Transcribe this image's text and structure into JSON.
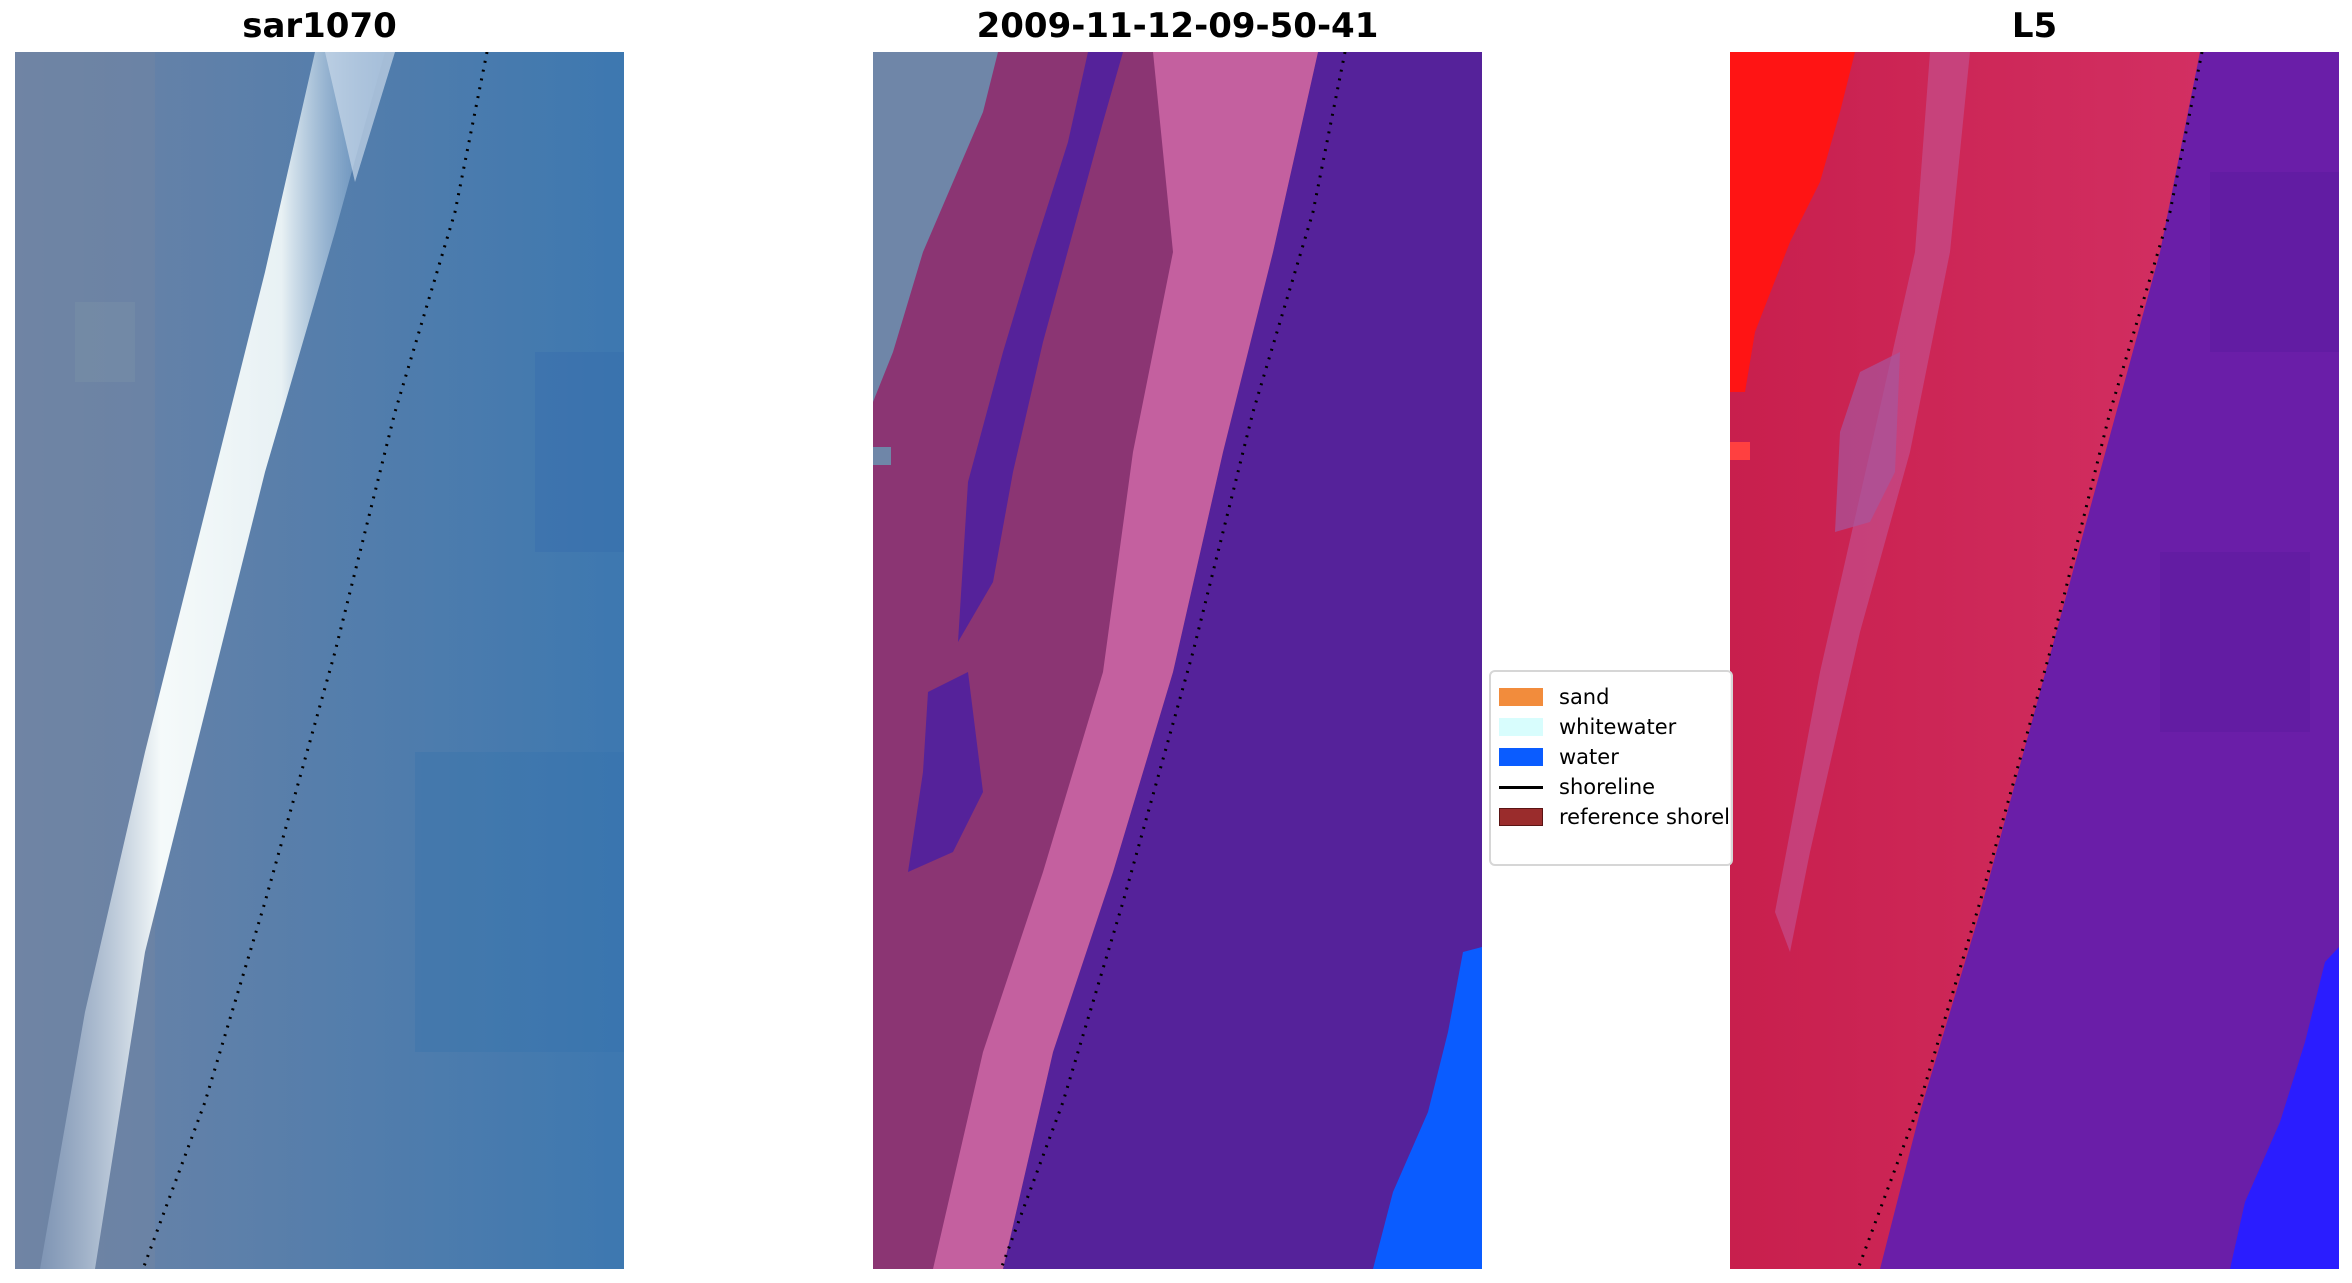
{
  "panels": [
    {
      "title": "sar1070",
      "kind": "rgb"
    },
    {
      "title": "2009-11-12-09-50-41",
      "kind": "classified"
    },
    {
      "title": "L5",
      "kind": "index"
    }
  ],
  "legend": {
    "items": [
      {
        "label": "sand",
        "type": "patch",
        "color": "#f28c3c"
      },
      {
        "label": "whitewater",
        "type": "patch",
        "color": "#d8fdfd"
      },
      {
        "label": "water",
        "type": "patch",
        "color": "#0a5cff"
      },
      {
        "label": "shoreline",
        "type": "line",
        "color": "#000000"
      },
      {
        "label": "reference shoreline",
        "type": "patch",
        "color": "#9a2c2c"
      }
    ]
  },
  "colors": {
    "rgb_land": "#6a82a8",
    "rgb_whitewater": "#f2f7f8",
    "rgb_water": "#3a77ad",
    "class_land_pink": "#8b3573",
    "class_pink_light": "#c4609f",
    "class_purple": "#55229a",
    "class_water": "#0a5cff",
    "class_grey_blue": "#6f86a8",
    "index_red": "#ff1414",
    "index_crimson": "#c61f55",
    "index_violet": "#6a1ea8",
    "index_blue": "#2a1dff",
    "shoreline": "#000000"
  }
}
